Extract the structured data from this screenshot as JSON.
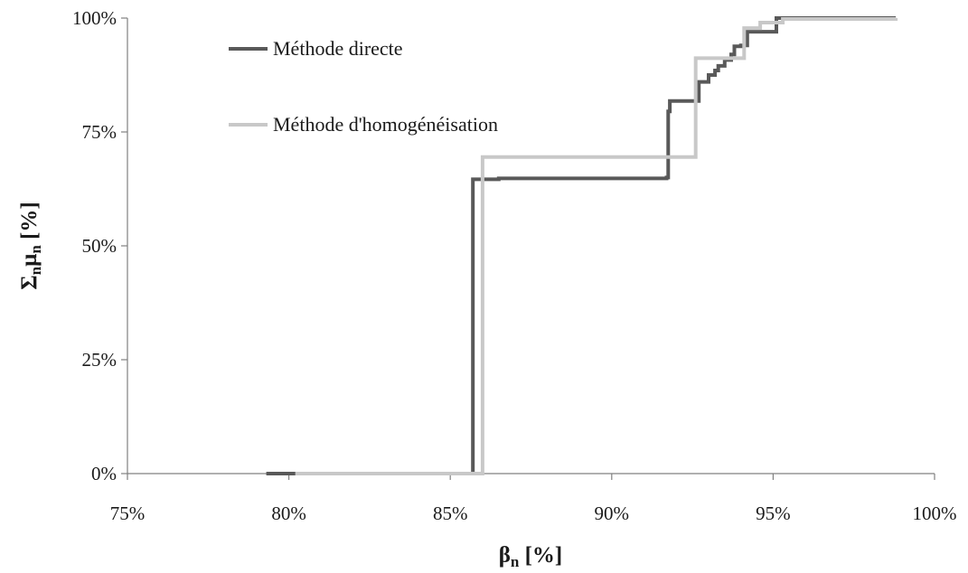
{
  "chart_data": {
    "type": "line",
    "step": true,
    "xlabel": {
      "main": "β",
      "sub": "n",
      "unit": "[%]"
    },
    "ylabel": {
      "main1": "Σ",
      "sub1": "n",
      "main2": "μ",
      "sub2": "n",
      "unit": "[%]"
    },
    "xlim": [
      75,
      100
    ],
    "ylim": [
      0,
      100
    ],
    "x_ticks": [
      75,
      80,
      85,
      90,
      95,
      100
    ],
    "x_tick_labels": [
      "75%",
      "80%",
      "85%",
      "90%",
      "95%",
      "100%"
    ],
    "y_ticks": [
      0,
      25,
      50,
      75,
      100
    ],
    "y_tick_labels": [
      "0%",
      "25%",
      "50%",
      "75%",
      "100%"
    ],
    "grid": false,
    "legend_position": "top-left",
    "series": [
      {
        "name": "Méthode directe",
        "color": "#595959",
        "points": [
          [
            79.3,
            0
          ],
          [
            85.7,
            0.6
          ],
          [
            85.7,
            64.6
          ],
          [
            86.5,
            64.8
          ],
          [
            91.7,
            65.0
          ],
          [
            91.75,
            79.5
          ],
          [
            91.8,
            81.8
          ],
          [
            92.7,
            81.8
          ],
          [
            92.7,
            86.0
          ],
          [
            93.0,
            86.0
          ],
          [
            93.0,
            87.5
          ],
          [
            93.2,
            88.5
          ],
          [
            93.3,
            89.5
          ],
          [
            93.5,
            90.8
          ],
          [
            93.7,
            92.0
          ],
          [
            93.8,
            93.8
          ],
          [
            94.0,
            94.0
          ],
          [
            94.2,
            97.0
          ],
          [
            95.1,
            97.5
          ],
          [
            95.1,
            100
          ],
          [
            98.8,
            100
          ]
        ]
      },
      {
        "name": "Méthode d'homogénéisation",
        "color": "#c8c8c8",
        "points": [
          [
            80.2,
            0
          ],
          [
            86.0,
            0
          ],
          [
            86.0,
            69.5
          ],
          [
            92.6,
            69.5
          ],
          [
            92.6,
            91.2
          ],
          [
            94.1,
            91.2
          ],
          [
            94.1,
            97.8
          ],
          [
            94.6,
            97.8
          ],
          [
            94.6,
            99.0
          ],
          [
            95.3,
            99.0
          ],
          [
            95.3,
            99.8
          ],
          [
            98.8,
            100
          ]
        ]
      }
    ]
  }
}
